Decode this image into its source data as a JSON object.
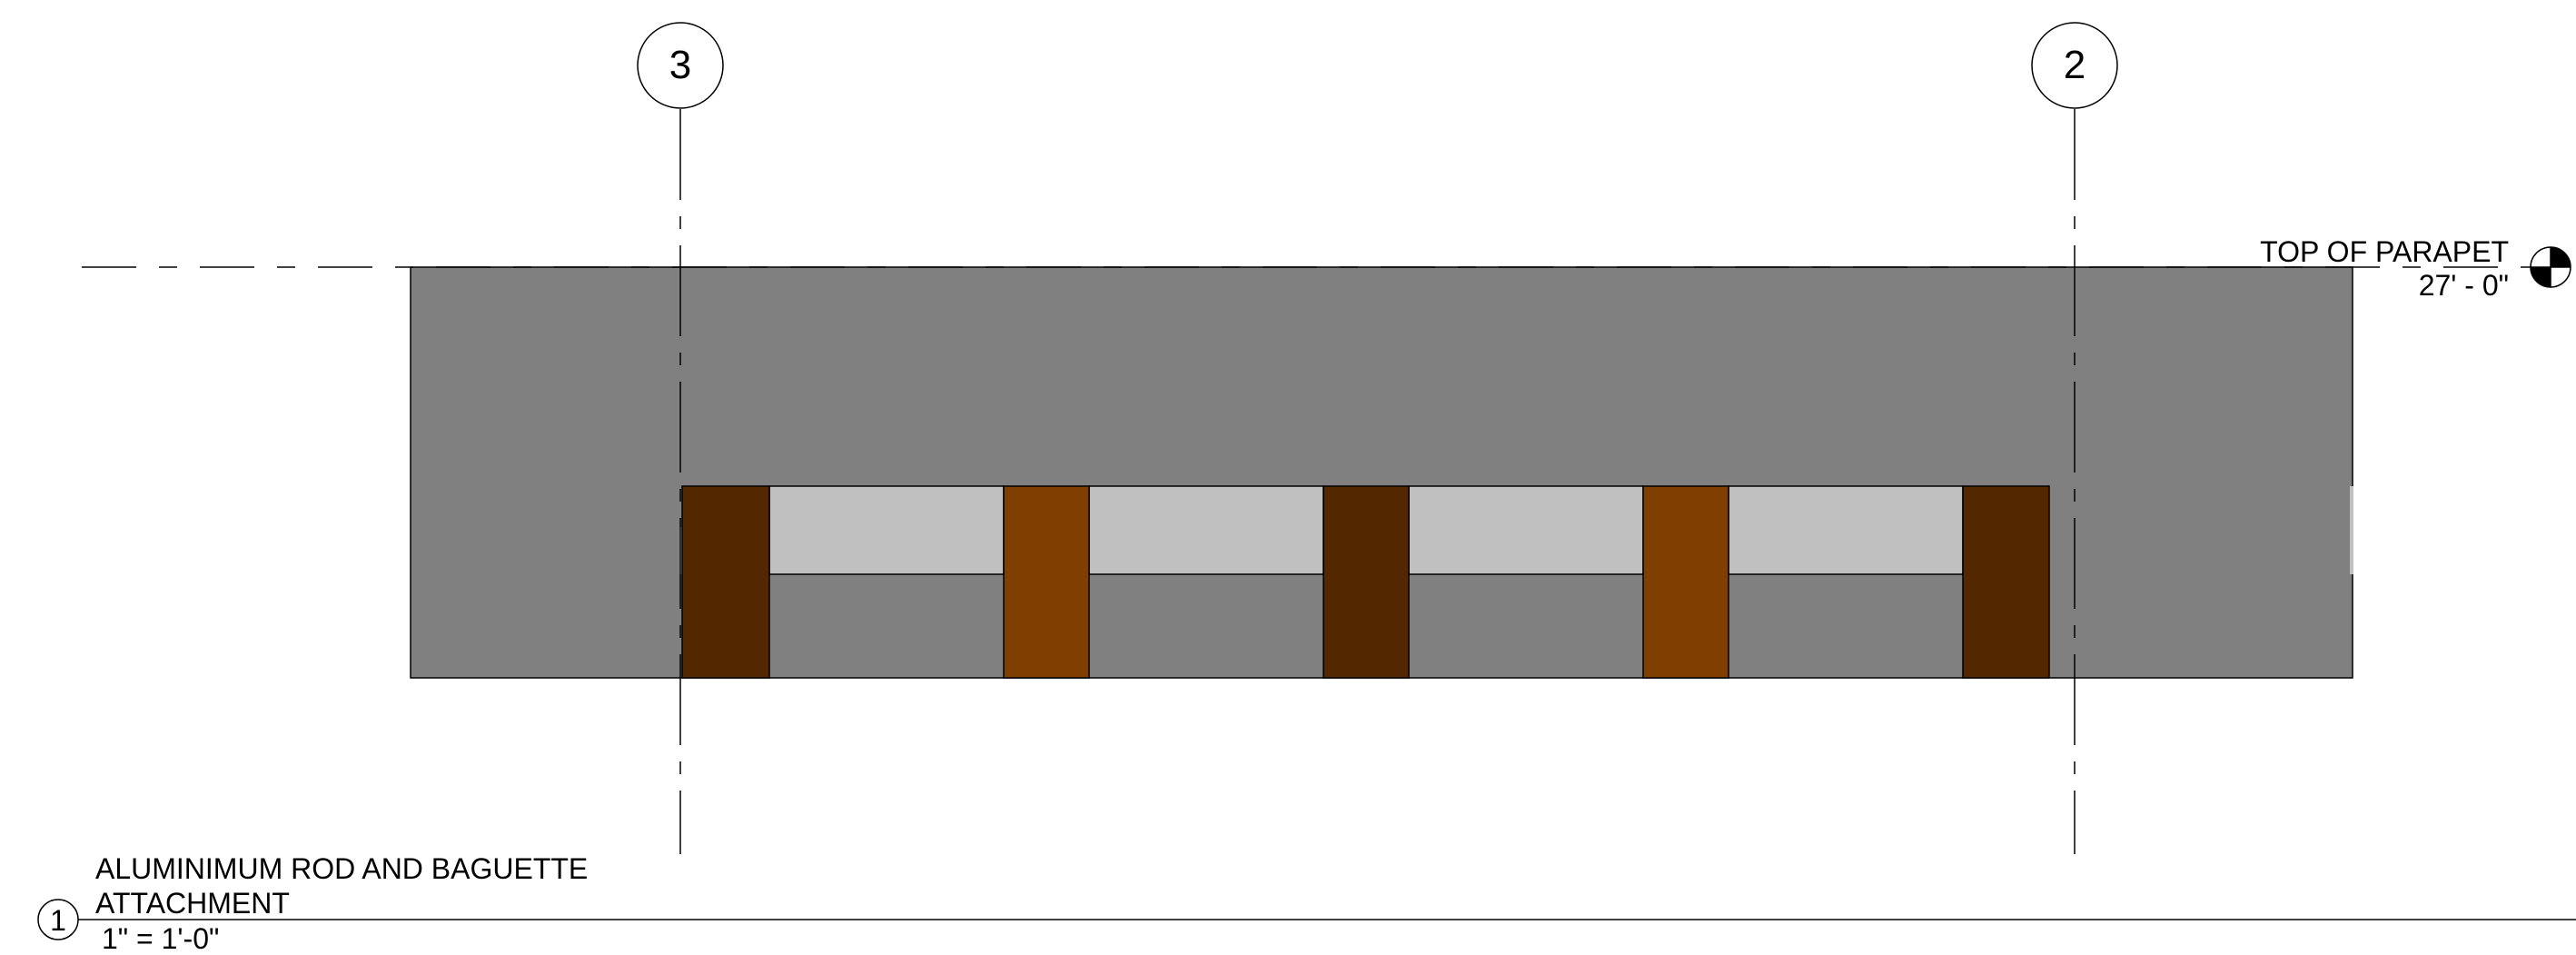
{
  "grid_lines": [
    {
      "label": "3"
    },
    {
      "label": "2"
    }
  ],
  "level_marker": {
    "name": "TOP OF PARAPET",
    "elevation": "27' - 0\""
  },
  "view_title": {
    "number": "1",
    "title_line1": "ALUMINIMUM ROD AND BAGUETTE",
    "title_line2": "ATTACHMENT",
    "scale": "1\" = 1'-0\""
  },
  "colors": {
    "wall": "#808080",
    "glass_band": "#c0c0c0",
    "post_dark": "#532700",
    "post_light": "#7f3f00",
    "line": "#000000"
  }
}
